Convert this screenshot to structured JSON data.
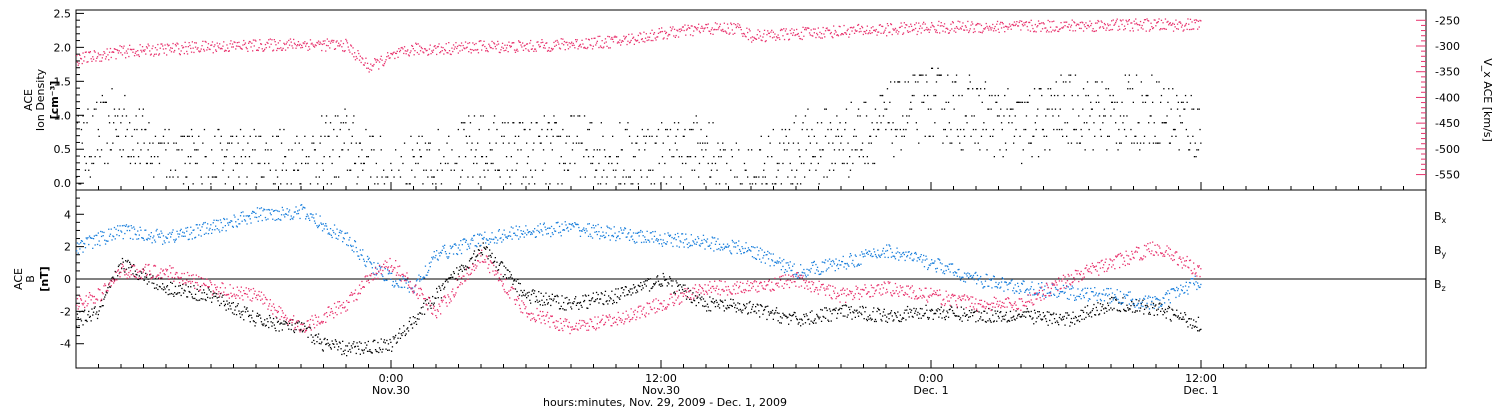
{
  "chart_data": [
    {
      "type": "scatter",
      "panel": "top",
      "left_axis": {
        "label_lines": [
          "ACE",
          "Ion Density"
        ],
        "unit": "[cm⁻³]",
        "ylim": [
          -0.1,
          2.55
        ],
        "ticks": [
          0.0,
          0.5,
          1.0,
          1.5,
          2.0,
          2.5
        ],
        "tick_labels": [
          "0.0",
          "0.5",
          "1.0",
          "1.5",
          "2.0",
          "2.5"
        ],
        "color": "#000000"
      },
      "right_axis": {
        "label": "V_x ACE [km/s]",
        "ylim": [
          -580,
          -230
        ],
        "ticks": [
          -550,
          -500,
          -450,
          -400,
          -350,
          -300,
          -250
        ],
        "tick_labels": [
          "-550",
          "-500",
          "-450",
          "-400",
          "-350",
          "-300",
          "-250"
        ],
        "color": "#e8336e"
      },
      "series": [
        {
          "color": "#000000",
          "axis": "left",
          "x_hours": [
            -14,
            -12,
            -10,
            -8,
            -6,
            -4,
            -2,
            0,
            2,
            4,
            6,
            8,
            10,
            12,
            14,
            15,
            16,
            18,
            20,
            22,
            24,
            26,
            28,
            30,
            32,
            34,
            36
          ],
          "y": [
            0.5,
            0.9,
            0.3,
            0.3,
            0.3,
            0.3,
            0.6,
            0.0,
            0.3,
            0.5,
            0.4,
            0.5,
            0.4,
            0.4,
            0.5,
            0.0,
            0.1,
            0.5,
            0.6,
            0.9,
            1.2,
            1.0,
            0.8,
            1.1,
            1.0,
            1.1,
            0.8
          ]
        },
        {
          "color": "#e8336e",
          "axis": "right",
          "x_hours": [
            -14,
            -12,
            -10,
            -8,
            -6,
            -4,
            -2,
            -1,
            0,
            1,
            2,
            4,
            6,
            8,
            10,
            12,
            14,
            15,
            15.5,
            16,
            18,
            20,
            22,
            24,
            26,
            28,
            30,
            32,
            34,
            36
          ],
          "y": [
            -325,
            -310,
            -305,
            -300,
            -298,
            -295,
            -298,
            -340,
            -320,
            -305,
            -305,
            -300,
            -300,
            -295,
            -290,
            -275,
            -265,
            -265,
            -265,
            -280,
            -275,
            -270,
            -267,
            -263,
            -262,
            -261,
            -260,
            -258,
            -258,
            -258
          ]
        }
      ]
    },
    {
      "type": "scatter",
      "panel": "bottom",
      "left_axis": {
        "label_lines": [
          "ACE",
          "B"
        ],
        "unit": "[nT]",
        "ylim": [
          -5.5,
          5.5
        ],
        "ticks": [
          -4,
          -2,
          0,
          2,
          4
        ],
        "tick_labels": [
          "-4",
          "-2",
          "0",
          "2",
          "4"
        ]
      },
      "zero_line": true,
      "series": [
        {
          "name": "B",
          "sub": "x",
          "color": "#000000",
          "x_hours": [
            -14,
            -13,
            -12,
            -10,
            -8,
            -6,
            -4,
            -3,
            -2,
            0,
            2,
            4,
            6,
            8,
            10,
            12,
            14,
            16,
            18,
            20,
            22,
            24,
            26,
            28,
            30,
            32,
            34,
            36
          ],
          "y": [
            -2.5,
            -2.0,
            1.0,
            -0.5,
            -1.0,
            -2.5,
            -3.0,
            -4.0,
            -4.3,
            -4.0,
            -1.0,
            2.0,
            -1.0,
            -1.5,
            -1.0,
            0.0,
            -1.5,
            -1.8,
            -2.5,
            -2.0,
            -2.2,
            -2.0,
            -2.2,
            -2.2,
            -2.5,
            -1.5,
            -1.8,
            -2.8
          ]
        },
        {
          "name": "B",
          "sub": "y",
          "color": "#1a7fdc",
          "x_hours": [
            -14,
            -13,
            -12,
            -10,
            -8,
            -6,
            -4,
            -2,
            -1,
            0,
            1,
            2,
            4,
            6,
            8,
            10,
            12,
            14,
            16,
            18,
            20,
            22,
            24,
            26,
            28,
            30,
            32,
            34,
            36
          ],
          "y": [
            2.0,
            2.5,
            3.0,
            2.6,
            3.2,
            4.0,
            4.2,
            2.5,
            1.0,
            0.0,
            -0.5,
            1.5,
            2.5,
            3.0,
            3.2,
            2.8,
            2.5,
            2.3,
            1.8,
            0.5,
            1.0,
            1.8,
            1.0,
            0.0,
            -0.5,
            -0.8,
            -1.0,
            -1.5,
            0.0
          ]
        },
        {
          "name": "B",
          "sub": "z",
          "color": "#e8336e",
          "x_hours": [
            -14,
            -13,
            -12,
            -10,
            -8,
            -6,
            -4,
            -2,
            -1,
            0,
            2,
            4,
            6,
            8,
            10,
            12,
            14,
            16,
            18,
            20,
            22,
            24,
            26,
            28,
            30,
            32,
            34,
            36
          ],
          "y": [
            -1.5,
            -1.0,
            0.5,
            0.5,
            -0.5,
            -1.0,
            -3.0,
            -1.5,
            0.0,
            1.0,
            -2.0,
            1.5,
            -2.0,
            -3.0,
            -2.5,
            -1.5,
            -0.5,
            -0.5,
            0.0,
            -1.0,
            -0.5,
            -1.0,
            -1.5,
            -1.5,
            0.0,
            1.0,
            2.0,
            0.5
          ]
        }
      ]
    }
  ],
  "x_axis": {
    "range_hours": [
      -14,
      46
    ],
    "major_ticks": [
      {
        "hour": 0,
        "line1": "0:00",
        "line2": "Nov.30"
      },
      {
        "hour": 12,
        "line1": "12:00",
        "line2": "Nov.30"
      },
      {
        "hour": 24,
        "line1": "0:00",
        "line2": "Dec. 1"
      },
      {
        "hour": 36,
        "line1": "12:00",
        "line2": "Dec. 1"
      }
    ],
    "label": "hours:minutes, Nov. 29, 2009 - Dec.  1, 2009"
  }
}
